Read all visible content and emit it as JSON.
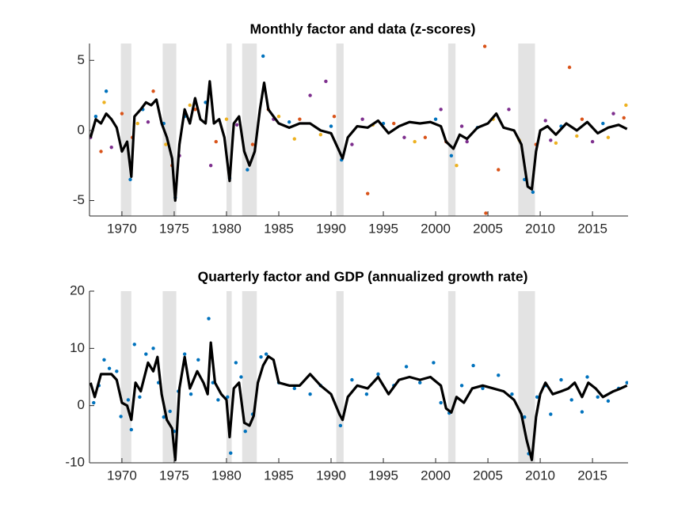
{
  "chart_data": [
    {
      "type": "line",
      "title": "Monthly factor and data (z-scores)",
      "xlim": [
        1966.9,
        2018.4
      ],
      "xticks": [
        1970,
        1975,
        1980,
        1985,
        1990,
        1995,
        2000,
        2005,
        2010,
        2015
      ],
      "ylim": [
        -6.1,
        6.2
      ],
      "yticks": [
        -5,
        0,
        5
      ],
      "shaded_spans": [
        [
          1969.9,
          1970.9
        ],
        [
          1973.9,
          1975.2
        ],
        [
          1980.0,
          1980.5
        ],
        [
          1981.5,
          1982.9
        ],
        [
          1990.5,
          1991.2
        ],
        [
          2001.2,
          2001.9
        ],
        [
          2007.9,
          2009.5
        ]
      ],
      "shade_color": "#e3e3e3",
      "series": [
        {
          "kind": "scatter",
          "color": "#0072bd",
          "x": [
            1967.5,
            1968.5,
            1970.8,
            1972,
            1974,
            1975.1,
            1976,
            1978,
            1980.3,
            1982,
            1983.5,
            1986,
            1990,
            1991,
            1995,
            2000,
            2001.5,
            2004,
            2008.5,
            2009.3,
            2012,
            2016
          ],
          "values": [
            1.0,
            2.8,
            -3.5,
            1.5,
            0.5,
            -4.8,
            1.0,
            2.0,
            -3.4,
            -2.8,
            5.3,
            0.6,
            0.3,
            -2.1,
            0.5,
            0.8,
            -1.8,
            0.2,
            -3.5,
            -4.4,
            0.3,
            0.5
          ]
        },
        {
          "kind": "scatter",
          "color": "#d95319",
          "x": [
            1968,
            1970,
            1971,
            1973,
            1974.8,
            1977,
            1979,
            1982.5,
            1984,
            1987,
            1990.3,
            1993.5,
            1996,
            1999,
            2001,
            2004.7,
            2004.8,
            2006,
            2009.6,
            2012.8,
            2014,
            2018
          ],
          "values": [
            -1.5,
            1.2,
            -0.5,
            2.8,
            -2.5,
            1.5,
            -0.8,
            -1.0,
            1.5,
            0.8,
            1.0,
            -4.5,
            0.5,
            -0.5,
            -0.8,
            6.0,
            -5.9,
            -2.8,
            -1.0,
            4.5,
            0.8,
            0.9
          ]
        },
        {
          "kind": "scatter",
          "color": "#7e2f8e",
          "x": [
            1967,
            1969,
            1972.5,
            1975.5,
            1978.5,
            1981,
            1984.5,
            1988,
            1989.5,
            1992,
            1993,
            1997,
            2000.5,
            2002.5,
            2003,
            2007,
            2010.5,
            2011,
            2015,
            2017
          ],
          "values": [
            -0.5,
            -1.2,
            0.6,
            -1.8,
            -2.5,
            0.4,
            0.8,
            2.5,
            3.5,
            -1.0,
            0.8,
            -0.5,
            1.5,
            0.3,
            -0.8,
            1.5,
            0.7,
            -0.7,
            -0.8,
            1.2
          ]
        },
        {
          "kind": "scatter",
          "color": "#edb120",
          "x": [
            1968.3,
            1971.5,
            1974.2,
            1976.5,
            1980,
            1985,
            1986.5,
            1989,
            1994,
            1998,
            2002,
            2005.5,
            2008,
            2011.5,
            2013.5,
            2016.5,
            2018.2
          ],
          "values": [
            2.0,
            0.5,
            -1.0,
            1.8,
            0.8,
            1.0,
            -0.6,
            -0.3,
            0.4,
            -0.8,
            -2.5,
            0.8,
            -0.7,
            -0.9,
            -0.4,
            -0.5,
            1.8
          ]
        },
        {
          "kind": "line",
          "color": "#000000",
          "x": [
            1967.0,
            1967.5,
            1968.0,
            1968.5,
            1969.0,
            1969.5,
            1970.0,
            1970.5,
            1970.9,
            1971.2,
            1971.8,
            1972.3,
            1972.8,
            1973.3,
            1973.8,
            1974.3,
            1974.8,
            1975.1,
            1975.5,
            1976.0,
            1976.5,
            1977.0,
            1977.5,
            1978.0,
            1978.4,
            1978.8,
            1979.3,
            1979.8,
            1980.3,
            1980.7,
            1981.2,
            1981.7,
            1982.2,
            1982.7,
            1983.2,
            1983.6,
            1984.0,
            1985.0,
            1986.0,
            1987.0,
            1988.0,
            1989.0,
            1990.0,
            1990.8,
            1991.1,
            1991.6,
            1992.5,
            1993.5,
            1994.5,
            1995.5,
            1996.5,
            1997.5,
            1998.5,
            1999.5,
            2000.5,
            2001.0,
            2001.7,
            2002.3,
            2003.0,
            2004.0,
            2005.0,
            2005.8,
            2006.5,
            2007.5,
            2008.2,
            2008.8,
            2009.2,
            2009.6,
            2010.0,
            2010.7,
            2011.5,
            2012.5,
            2013.5,
            2014.5,
            2015.5,
            2016.5,
            2017.5,
            2018.3
          ],
          "values": [
            -0.5,
            0.8,
            0.5,
            1.2,
            0.8,
            0.2,
            -1.5,
            -0.8,
            -3.3,
            1.0,
            1.5,
            2.0,
            1.8,
            2.2,
            0.5,
            -0.5,
            -2.0,
            -5.0,
            -1.0,
            1.5,
            0.5,
            2.3,
            0.8,
            0.5,
            3.5,
            0.5,
            0.8,
            -0.5,
            -3.6,
            0.5,
            1.0,
            -1.5,
            -2.5,
            -1.5,
            1.5,
            3.4,
            1.5,
            0.5,
            0.2,
            0.5,
            0.5,
            0.0,
            -0.2,
            -1.5,
            -2.0,
            -0.5,
            0.3,
            0.2,
            0.7,
            -0.2,
            0.3,
            0.6,
            0.5,
            0.6,
            0.3,
            -0.8,
            -1.3,
            -0.3,
            -0.6,
            0.2,
            0.5,
            1.2,
            0.2,
            0.0,
            -1.0,
            -4.0,
            -4.2,
            -1.5,
            0.0,
            0.3,
            -0.3,
            0.5,
            0.0,
            0.6,
            -0.2,
            0.2,
            0.4,
            0.1
          ]
        }
      ]
    },
    {
      "type": "line",
      "title": "Quarterly factor and GDP (annualized growth rate)",
      "xlim": [
        1966.9,
        2018.4
      ],
      "xticks": [
        1970,
        1975,
        1980,
        1985,
        1990,
        1995,
        2000,
        2005,
        2010,
        2015
      ],
      "ylim": [
        -10,
        20
      ],
      "yticks": [
        -10,
        0,
        10,
        20
      ],
      "shaded_spans": [
        [
          1969.9,
          1970.9
        ],
        [
          1973.9,
          1975.2
        ],
        [
          1980.0,
          1980.5
        ],
        [
          1981.5,
          1982.9
        ],
        [
          1990.5,
          1991.2
        ],
        [
          2001.2,
          2001.9
        ],
        [
          2007.9,
          2009.5
        ]
      ],
      "shade_color": "#e3e3e3",
      "series": [
        {
          "kind": "scatter",
          "color": "#0072bd",
          "x": [
            1967.3,
            1967.8,
            1968.3,
            1968.8,
            1969.5,
            1969.9,
            1970.6,
            1970.9,
            1971.2,
            1971.7,
            1972.3,
            1973.0,
            1973.5,
            1974.0,
            1974.6,
            1975.0,
            1975.4,
            1976.0,
            1976.6,
            1977.3,
            1978.3,
            1978.7,
            1979.2,
            1980.1,
            1980.4,
            1980.9,
            1981.4,
            1981.8,
            1982.5,
            1983.3,
            1983.8,
            1985,
            1986.5,
            1988,
            1989,
            1990.9,
            1992,
            1993.4,
            1994.5,
            1996,
            1997.2,
            1998.5,
            1999.8,
            2000.5,
            2001.3,
            2002.5,
            2003.6,
            2004.5,
            2006,
            2007.3,
            2008.5,
            2008.9,
            2009.7,
            2010.5,
            2011,
            2012,
            2013,
            2014,
            2014.5,
            2015.5,
            2016.5,
            2017.5,
            2018.3
          ],
          "values": [
            0.5,
            3.5,
            8.0,
            6.5,
            6.0,
            -1.9,
            1.0,
            -4.2,
            10.7,
            1.5,
            9.0,
            10.0,
            4.0,
            -2.0,
            -1.0,
            -4.5,
            2.5,
            9.0,
            2.0,
            8.0,
            15.2,
            4.0,
            1.0,
            1.5,
            -8.3,
            7.5,
            5.0,
            -4.5,
            -1.5,
            8.5,
            9.0,
            4.0,
            3.0,
            2.0,
            3.5,
            -3.5,
            4.5,
            2.0,
            5.5,
            3.5,
            6.8,
            4.0,
            7.5,
            0.5,
            -1.3,
            3.5,
            7.0,
            3.0,
            5.3,
            2.0,
            -2.0,
            -8.4,
            1.5,
            3.5,
            -1.5,
            4.5,
            1.0,
            -1.1,
            5.0,
            1.5,
            0.8,
            3.0,
            4.0
          ]
        },
        {
          "kind": "line",
          "color": "#000000",
          "x": [
            1967,
            1967.4,
            1968,
            1969,
            1969.5,
            1970,
            1970.5,
            1970.9,
            1971.3,
            1971.8,
            1972.5,
            1973.0,
            1973.4,
            1973.8,
            1974.3,
            1974.8,
            1975.1,
            1975.5,
            1976,
            1976.5,
            1977.2,
            1977.8,
            1978.2,
            1978.5,
            1978.9,
            1979.5,
            1980.0,
            1980.3,
            1980.7,
            1981.2,
            1981.7,
            1982.2,
            1982.6,
            1983.0,
            1983.5,
            1984.0,
            1984.5,
            1985.0,
            1986,
            1987,
            1988,
            1989,
            1990,
            1990.8,
            1991.1,
            1991.6,
            1992.5,
            1993.5,
            1994.5,
            1995.5,
            1996.5,
            1997.5,
            1998.5,
            1999.5,
            2000.5,
            2001.0,
            2001.5,
            2002.0,
            2002.7,
            2003.5,
            2004.5,
            2005.5,
            2006.5,
            2007.5,
            2008.2,
            2008.7,
            2009.2,
            2009.6,
            2010.0,
            2010.5,
            2011.2,
            2012.0,
            2012.7,
            2013.3,
            2014.0,
            2014.6,
            2015.3,
            2016.0,
            2016.5,
            2017.0,
            2017.7,
            2018.3
          ],
          "values": [
            4,
            1.5,
            5.5,
            5.5,
            4.5,
            0.5,
            0.0,
            -2.5,
            4.0,
            2.5,
            7.5,
            6.0,
            8.5,
            2.0,
            -2.5,
            -4.0,
            -9.5,
            3.0,
            8.5,
            3.0,
            6.0,
            4.0,
            2.0,
            11.0,
            4.0,
            2.0,
            1.0,
            -5.5,
            3.0,
            4.0,
            -3.0,
            -3.5,
            -1.8,
            4.0,
            7.0,
            8.6,
            8.0,
            4.0,
            3.5,
            3.5,
            5.5,
            3.5,
            2.0,
            -1.5,
            -2.5,
            1.5,
            3.5,
            3.0,
            5.0,
            2.0,
            4.5,
            5.0,
            4.5,
            5.0,
            3.5,
            -0.5,
            -1.2,
            1.5,
            0.5,
            3.0,
            3.5,
            3.0,
            2.5,
            1.0,
            -1.5,
            -6.0,
            -9.5,
            -2.0,
            2.0,
            4.0,
            2.0,
            2.5,
            3.0,
            4.0,
            1.5,
            4.0,
            3.0,
            1.5,
            2.0,
            2.5,
            3.0,
            3.5
          ]
        }
      ]
    }
  ]
}
